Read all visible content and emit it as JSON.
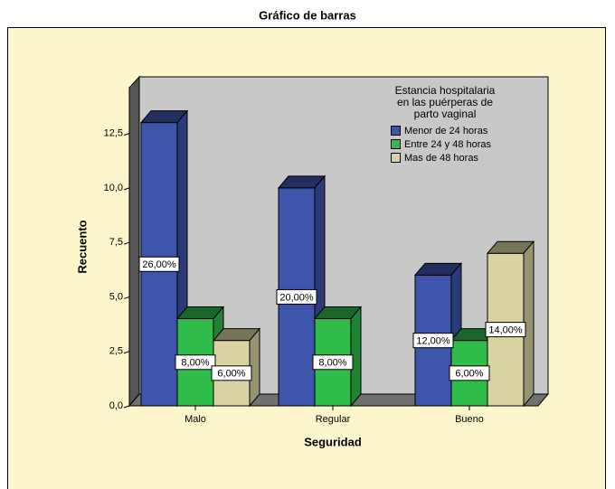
{
  "chart_data": {
    "type": "bar3d",
    "title": "Gráfico de barras",
    "categories": [
      "Malo",
      "Regular",
      "Bueno"
    ],
    "x_label": "Seguridad",
    "y_label": "Recuento",
    "legend_title": "Estancia hospitalaria en las puérperas de parto vaginal",
    "series": [
      {
        "name": "Menor de 24 horas",
        "color": "#3d55ab",
        "values": [
          13,
          10,
          6
        ],
        "value_labels": [
          "26,00%",
          "20,00%",
          "12,00%"
        ]
      },
      {
        "name": "Entre 24 y 48 horas",
        "color": "#2fbc4a",
        "values": [
          4,
          4,
          3
        ],
        "value_labels": [
          "8,00%",
          "8,00%",
          "6,00%"
        ]
      },
      {
        "name": "Mas de 48 horas",
        "color": "#d9d3a4",
        "values": [
          3,
          null,
          7
        ],
        "value_labels": [
          "6,00%",
          null,
          "14,00%"
        ]
      }
    ],
    "ylim": [
      0,
      14.6
    ],
    "yticks": [
      {
        "value": 0,
        "label": "0,0"
      },
      {
        "value": 2.5,
        "label": "2,5"
      },
      {
        "value": 5,
        "label": "5,0"
      },
      {
        "value": 7.5,
        "label": "7,5"
      },
      {
        "value": 10,
        "label": "10,0"
      },
      {
        "value": 12.5,
        "label": "12,5"
      }
    ]
  }
}
